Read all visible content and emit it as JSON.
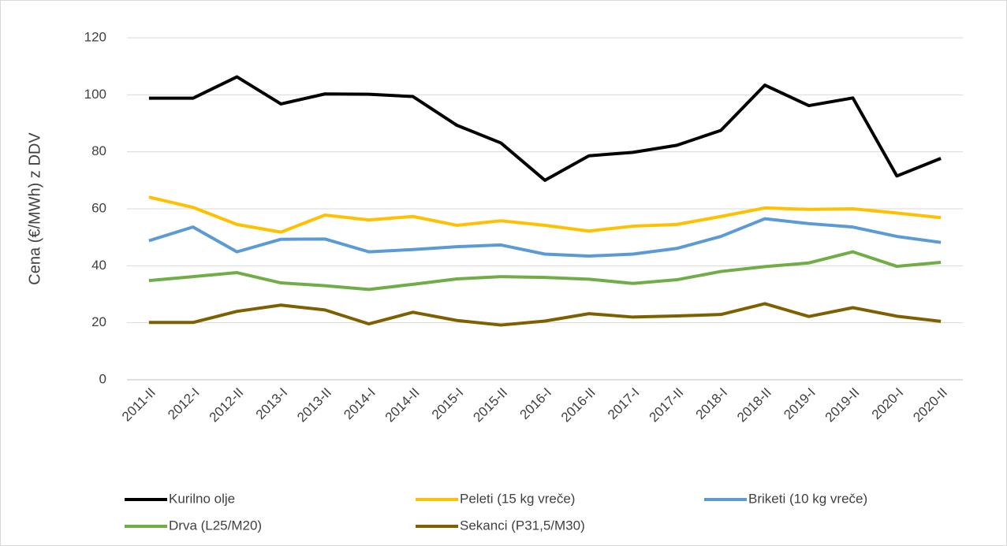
{
  "chart_data": {
    "type": "line",
    "y_label": "Cena (€/MWh) z DDV",
    "categories": [
      "2011-II",
      "2012-I",
      "2012-II",
      "2013-I",
      "2013-II",
      "2014-I",
      "2014-II",
      "2015-I",
      "2015-II",
      "2016-I",
      "2016-II",
      "2017-I",
      "2017-II",
      "2018-I",
      "2018-II",
      "2019-I",
      "2019-II",
      "2020-I",
      "2020-II"
    ],
    "series": [
      {
        "name": "Kurilno olje",
        "color": "#000000",
        "values": [
          98.8,
          98.8,
          106.3,
          96.8,
          100.3,
          100.2,
          99.4,
          89.3,
          83.1,
          70.0,
          78.6,
          79.8,
          82.3,
          87.5,
          103.4,
          96.2,
          98.9,
          71.5,
          77.7
        ]
      },
      {
        "name": "Peleti (15 kg vreče)",
        "color": "#ffc000",
        "values": [
          64.1,
          60.5,
          54.5,
          51.8,
          57.8,
          56.1,
          57.3,
          54.2,
          55.8,
          54.2,
          52.2,
          53.9,
          54.5,
          57.3,
          60.3,
          59.8,
          60.0,
          58.5,
          56.9
        ]
      },
      {
        "name": "Briketi (10 kg vreče)",
        "color": "#5b9bd5",
        "values": [
          48.8,
          53.6,
          44.9,
          49.3,
          49.4,
          44.9,
          45.7,
          46.7,
          47.3,
          44.1,
          43.4,
          44.1,
          46.1,
          50.3,
          56.5,
          54.8,
          53.6,
          50.3,
          48.2
        ]
      },
      {
        "name": "Drva (L25/M20)",
        "color": "#70ad47",
        "values": [
          34.8,
          36.2,
          37.6,
          34.0,
          33.0,
          31.7,
          33.5,
          35.4,
          36.2,
          35.9,
          35.3,
          33.8,
          35.1,
          38.0,
          39.7,
          41.0,
          44.9,
          39.8,
          41.2
        ]
      },
      {
        "name": "Sekanci (P31,5/M30)",
        "color": "#7f6000",
        "values": [
          20.1,
          20.1,
          24.0,
          26.2,
          24.5,
          19.6,
          23.7,
          20.8,
          19.2,
          20.6,
          23.2,
          22.0,
          22.4,
          22.9,
          26.7,
          22.2,
          25.3,
          22.3,
          20.5
        ]
      }
    ],
    "ylim": [
      0,
      120
    ],
    "yticks": [
      0,
      20,
      40,
      60,
      80,
      100,
      120
    ],
    "grid": true,
    "legend": "bottom"
  }
}
